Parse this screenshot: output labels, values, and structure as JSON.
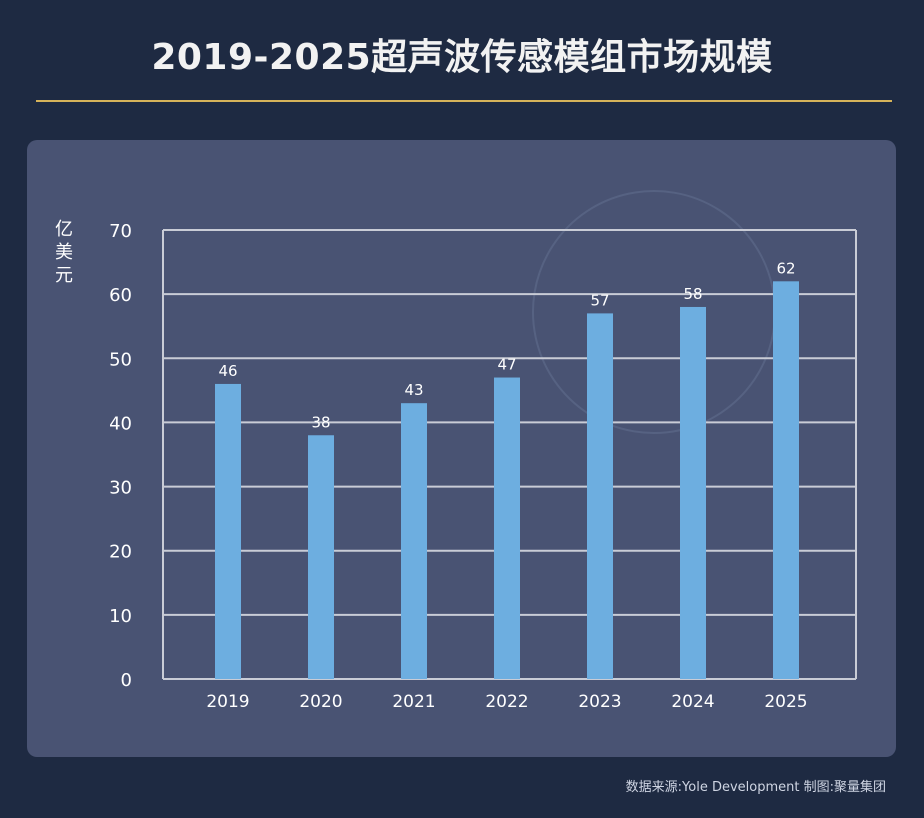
{
  "title": "2019-2025超声波传感模组市场规模",
  "unit_label": "亿美元",
  "source": "数据来源:Yole Development    制图:聚量集团",
  "colors": {
    "background": "#1e2a42",
    "panel": "#495373",
    "bar": "#6daee0",
    "grid": "#c9ccd6",
    "accent_rule": "#d6b35a",
    "text": "#ffffff"
  },
  "chart_data": {
    "type": "bar",
    "title": "2019-2025超声波传感模组市场规模",
    "xlabel": "",
    "ylabel": "亿美元",
    "categories": [
      "2019",
      "2020",
      "2021",
      "2022",
      "2023",
      "2024",
      "2025"
    ],
    "values": [
      46,
      38,
      43,
      47,
      57,
      58,
      62
    ],
    "ylim": [
      0,
      70
    ],
    "yticks": [
      0,
      10,
      20,
      30,
      40,
      50,
      60,
      70
    ],
    "grid": true,
    "data_labels": true
  }
}
